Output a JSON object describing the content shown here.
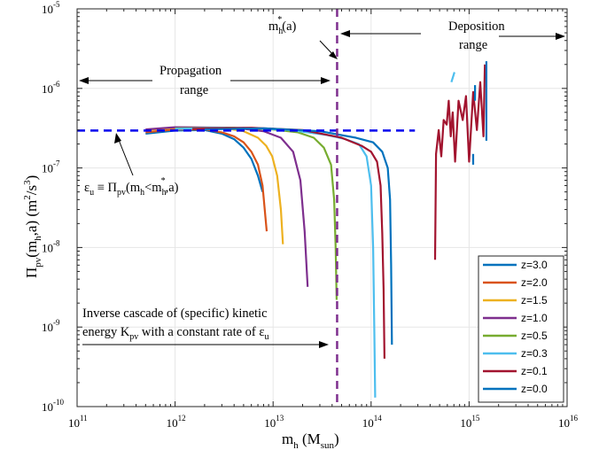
{
  "chart_data": {
    "type": "line",
    "x_scale": "log",
    "y_scale": "log",
    "xlim": [
      100000000000.0,
      1e+16
    ],
    "ylim": [
      1e-10,
      1e-05
    ],
    "x_ticks": [
      {
        "base": "10",
        "exp": "11"
      },
      {
        "base": "10",
        "exp": "12"
      },
      {
        "base": "10",
        "exp": "13"
      },
      {
        "base": "10",
        "exp": "14"
      },
      {
        "base": "10",
        "exp": "15"
      },
      {
        "base": "10",
        "exp": "16"
      }
    ],
    "y_ticks": [
      {
        "base": "10",
        "exp": "-10"
      },
      {
        "base": "10",
        "exp": "-9"
      },
      {
        "base": "10",
        "exp": "-8"
      },
      {
        "base": "10",
        "exp": "-7"
      },
      {
        "base": "10",
        "exp": "-6"
      },
      {
        "base": "10",
        "exp": "-5"
      }
    ],
    "xlabel": {
      "main": "m",
      "sub1": "h",
      "mid": " (M",
      "sub2": "sun",
      "end": ")"
    },
    "ylabel": {
      "pi": "Π",
      "sub": "pv",
      "mid": "(m",
      "sub2": "h",
      "mid2": ",a) (m",
      "sup1": "2",
      "mid3": "/s",
      "sup2": "3",
      "end": ")"
    },
    "grid": true,
    "legend_position": "bottom-right",
    "series": [
      {
        "name": "z=3.0",
        "color": "#0072bd",
        "x": [
          500000000000.0,
          1000000000000.0,
          2000000000000.0,
          3000000000000.0,
          4000000000000.0,
          5000000000000.0,
          6000000000000.0,
          7000000000000.0,
          7800000000000.0
        ],
        "y": [
          2.7e-07,
          2.95e-07,
          3e-07,
          2.7e-07,
          2.3e-07,
          1.8e-07,
          1.3e-07,
          8e-08,
          5e-08
        ]
      },
      {
        "name": "z=2.0",
        "color": "#d95319",
        "x": [
          500000000000.0,
          1000000000000.0,
          2000000000000.0,
          3000000000000.0,
          4000000000000.0,
          5000000000000.0,
          6000000000000.0,
          7000000000000.0,
          7800000000000.0,
          8600000000000.0
        ],
        "y": [
          2.8e-07,
          3.05e-07,
          3.05e-07,
          2.8e-07,
          2.5e-07,
          2.1e-07,
          1.6e-07,
          1.1e-07,
          6e-08,
          1.6e-08
        ]
      },
      {
        "name": "z=1.5",
        "color": "#edb120",
        "x": [
          500000000000.0,
          1000000000000.0,
          3000000000000.0,
          5000000000000.0,
          7000000000000.0,
          8500000000000.0,
          9800000000000.0,
          11000000000000.0,
          12000000000000.0,
          12600000000000.0
        ],
        "y": [
          3e-07,
          3.2e-07,
          3.2e-07,
          2.9e-07,
          2.4e-07,
          1.9e-07,
          1.4e-07,
          8e-08,
          3e-08,
          1.1e-08
        ]
      },
      {
        "name": "z=1.0",
        "color": "#7e2f8e",
        "x": [
          500000000000.0,
          1000000000000.0,
          4000000000000.0,
          8000000000000.0,
          12000000000000.0,
          16000000000000.0,
          19000000000000.0,
          21000000000000.0,
          22500000000000.0
        ],
        "y": [
          3.05e-07,
          3.25e-07,
          3.2e-07,
          2.9e-07,
          2.4e-07,
          1.6e-07,
          7e-08,
          1.6e-08,
          3.2e-09
        ]
      },
      {
        "name": "z=0.5",
        "color": "#77ac30",
        "x": [
          1000000000000.0,
          4000000000000.0,
          10000000000000.0,
          18000000000000.0,
          26000000000000.0,
          33000000000000.0,
          39000000000000.0,
          42000000000000.0,
          43500000000000.0,
          44500000000000.0
        ],
        "y": [
          3.15e-07,
          3.2e-07,
          3.05e-07,
          2.8e-07,
          2.4e-07,
          1.8e-07,
          1.1e-07,
          4e-08,
          1e-08,
          2.2e-09
        ]
      },
      {
        "name": "z=0.3",
        "color": "#4dbeee",
        "x": [
          1000000000000.0,
          5000000000000.0,
          15000000000000.0,
          35000000000000.0,
          55000000000000.0,
          75000000000000.0,
          90000000000000.0,
          100000000000000.0,
          105000000000000.0,
          108000000000000.0,
          110000000000000.0
        ],
        "y": [
          3.1e-07,
          3.2e-07,
          3e-07,
          2.6e-07,
          2.3e-07,
          2e-07,
          1.4e-07,
          6e-08,
          1e-08,
          8e-10,
          1.3e-10
        ]
      },
      {
        "name": "z=0.1",
        "color": "#a2142f",
        "x": [
          1500000000000.0,
          6000000000000.0,
          20000000000000.0,
          50000000000000.0,
          80000000000000.0,
          100000000000000.0,
          115000000000000.0,
          125000000000000.0,
          130000000000000.0,
          134000000000000.0,
          137000000000000.0
        ],
        "y": [
          3.1e-07,
          3.2e-07,
          3e-07,
          2.4e-07,
          1.9e-07,
          1.6e-07,
          1.2e-07,
          6e-08,
          1.5e-08,
          3e-09,
          4e-10
        ]
      },
      {
        "name": "z=0.0",
        "color": "#0072bd",
        "x": [
          2000000000000.0,
          8000000000000.0,
          30000000000000.0,
          70000000000000.0,
          105000000000000.0,
          130000000000000.0,
          148000000000000.0,
          156000000000000.0,
          160000000000000.0,
          163000000000000.0
        ],
        "y": [
          3.05e-07,
          3.15e-07,
          2.9e-07,
          2.4e-07,
          2.1e-07,
          1.6e-07,
          1e-07,
          4e-08,
          6e-09,
          6e-10
        ]
      }
    ],
    "deposition_bits": [
      {
        "color": "#a2142f",
        "x": [
          450000000000000.0,
          460000000000000.0,
          490000000000000.0,
          520000000000000.0,
          550000000000000.0,
          590000000000000.0,
          620000000000000.0,
          650000000000000.0,
          680000000000000.0,
          720000000000000.0,
          780000000000000.0,
          860000000000000.0,
          930000000000000.0,
          1000000000000000.0,
          1100000000000000.0,
          1200000000000000.0,
          1300000000000000.0,
          1400000000000000.0,
          1450000000000000.0
        ],
        "y": [
          7e-09,
          1.5e-07,
          3e-07,
          1.4e-07,
          4e-07,
          3.5e-07,
          7e-07,
          2.5e-07,
          5e-07,
          1.2e-07,
          7e-07,
          4e-07,
          8e-07,
          1.2e-07,
          9e-07,
          3e-07,
          1.2e-06,
          2.5e-07,
          2e-06
        ]
      },
      {
        "color": "#0072bd",
        "x": [
          1500000000000000.0,
          1500000000000000.0
        ],
        "y": [
          2.2e-06,
          2.2e-07
        ]
      },
      {
        "color": "#4dbeee",
        "x": [
          660000000000000.0,
          710000000000000.0
        ],
        "y": [
          1.2e-06,
          1.6e-06
        ]
      },
      {
        "color": "#0072bd",
        "x": [
          1150000000000000.0,
          1150000000000000.0
        ],
        "y": [
          7e-07,
          1.1e-06
        ]
      },
      {
        "color": "#0072bd",
        "x": [
          1100000000000000.0,
          1100000000000000.0
        ],
        "y": [
          1.1e-07,
          1.5e-07
        ]
      }
    ],
    "hline": {
      "y": 2.95e-07,
      "x0": 100000000000.0,
      "x1": 280000000000000.0,
      "color": "#0000ee"
    },
    "vline": {
      "x": 45000000000000.0,
      "color": "#7e2f8e"
    },
    "legend": [
      "z=3.0",
      "z=2.0",
      "z=1.5",
      "z=1.0",
      "z=0.5",
      "z=0.3",
      "z=0.1",
      "z=0.0"
    ]
  },
  "annotations": {
    "mh_star": {
      "m": "m",
      "sub": "h",
      "sup": "*",
      "end": "(a)"
    },
    "deposition_line1": "Deposition",
    "deposition_line2": "range",
    "propagation_line1": "Propagation",
    "propagation_line2": "range",
    "epsilon": {
      "eps": "ε",
      "eps_sub": "u",
      "eq": " ≡ Π",
      "pv_sub": "pv",
      "mid": "(m",
      "h1": "h",
      "lt": "<m",
      "h2": "h",
      "star": "*",
      "end": ",a)"
    },
    "cascade_line1": "Inverse cascade of (specific) kinetic",
    "cascade_line2_a": "energy K",
    "cascade_line2_sub": "pv",
    "cascade_line2_b": " with a constant rate of ",
    "cascade_eps": "ε",
    "cascade_eps_sub": "u"
  }
}
